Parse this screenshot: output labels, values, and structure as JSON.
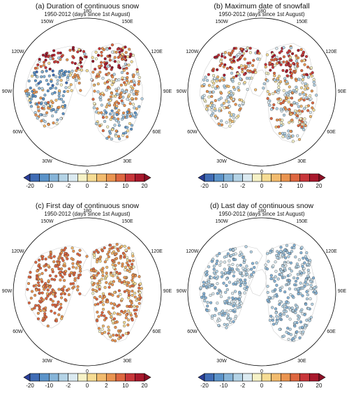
{
  "panels": [
    {
      "id": "a",
      "title": "(a) Duration of continuous snow",
      "subtitle": "1950-2012 (days since 1st August)",
      "pattern": "duration"
    },
    {
      "id": "b",
      "title": "(b) Maximum date of snowfall",
      "subtitle": "1950-2012 (days since 1st August)",
      "pattern": "maxdate"
    },
    {
      "id": "c",
      "title": "(c) First day of continuous snow",
      "subtitle": "1950-2012 (days since 1st August)",
      "pattern": "first"
    },
    {
      "id": "d",
      "title": "(d) Last day of continuous snow",
      "subtitle": "1950-2012 (days since 1st August)",
      "pattern": "last"
    }
  ],
  "longitude_labels": [
    "180",
    "150E",
    "120E",
    "90E",
    "60E",
    "30E",
    "0",
    "30W",
    "60W",
    "90W",
    "120W",
    "150W"
  ],
  "colorbar": {
    "ticks": [
      "-20",
      "-10",
      "-2",
      "0",
      "2",
      "10",
      "20"
    ],
    "levels": [
      -20,
      -15,
      -10,
      -5,
      -2,
      -1,
      0,
      1,
      2,
      5,
      10,
      15,
      20
    ],
    "colors": [
      "#2b3f99",
      "#3f6cb5",
      "#5b93c9",
      "#86b4d8",
      "#b4d3e6",
      "#dbeaf1",
      "#f6f2c7",
      "#f6dc94",
      "#f2bb6e",
      "#ea9450",
      "#de6740",
      "#c8363a",
      "#a8182c",
      "#8c1026"
    ]
  }
}
